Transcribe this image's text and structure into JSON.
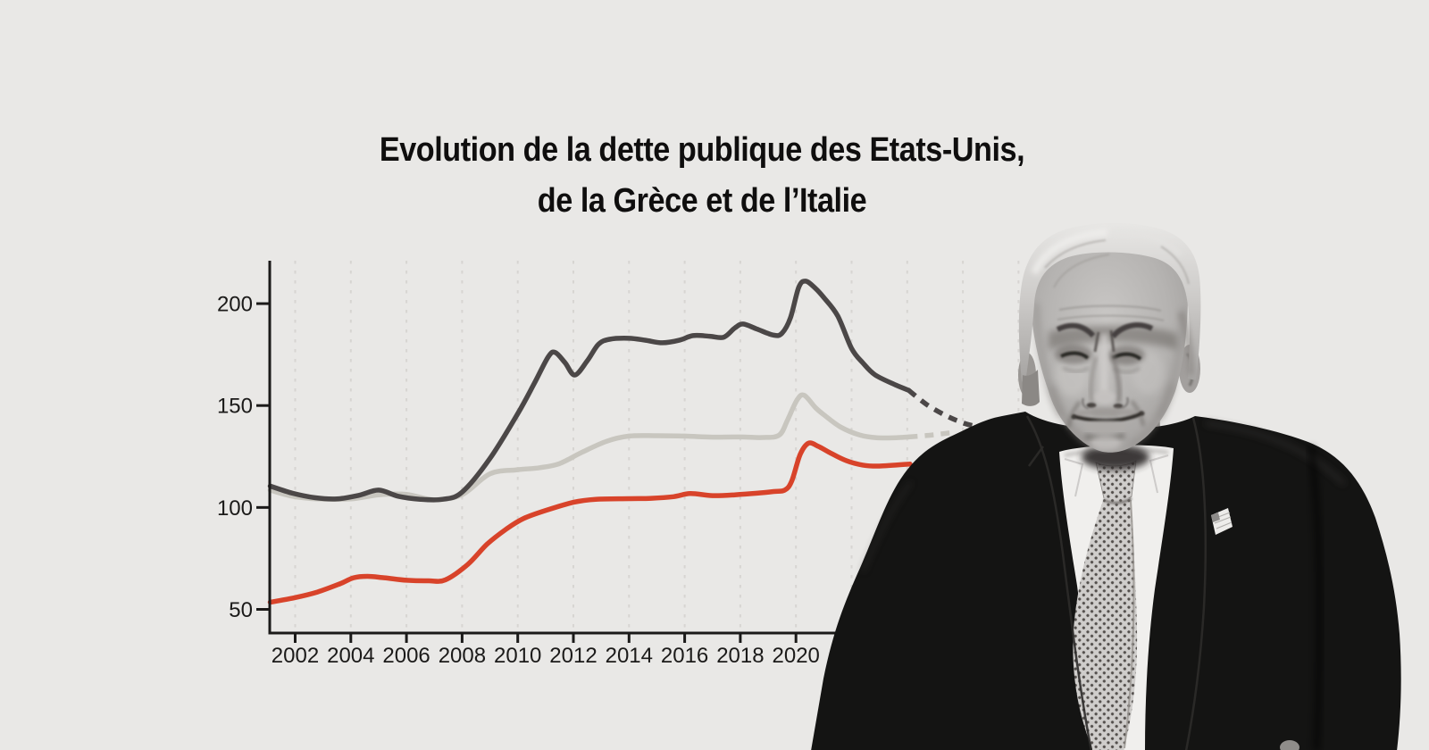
{
  "title": {
    "line1": "Evolution de la dette publique des Etats-Unis,",
    "line2": "de la Grèce et de l’Italie"
  },
  "image": {
    "portrait": "black-and-white cutout photo of Donald Trump in dark suit with dotted tie and US flag pin"
  },
  "colors": {
    "background": "#e9e8e6",
    "axis": "#1b1a19",
    "tick_label": "#1b1a19",
    "gridline": "#d7d5d2",
    "greece_line": "#4b4747",
    "italy_line": "#c8c6bf",
    "usa_line": "#d8432a"
  },
  "chart_data": {
    "type": "line",
    "title": "Evolution de la dette publique des Etats-Unis, de la Grèce et de l’Italie",
    "xlabel": "",
    "ylabel": "",
    "grid": "vertical-dashed",
    "legend": "none",
    "x_axis": {
      "tick_years": [
        2002,
        2004,
        2006,
        2008,
        2010,
        2012,
        2014,
        2016,
        2018,
        2020
      ],
      "gridline_years": [
        2002,
        2004,
        2006,
        2008,
        2010,
        2012,
        2014,
        2016,
        2018,
        2020,
        2022,
        2024,
        2026,
        2028
      ],
      "min": 2001.1,
      "max": 2028.3
    },
    "y_axis": {
      "ticks": [
        50,
        100,
        150,
        200
      ],
      "min": 38,
      "max": 221
    },
    "series": [
      {
        "name": "Italie",
        "color": "#c8c6bf",
        "style": "solid, dashed projection after 2024",
        "points": [
          [
            2001.1,
            108.5
          ],
          [
            2001.9,
            105.5
          ],
          [
            2002.8,
            104.2
          ],
          [
            2004,
            104.2
          ],
          [
            2005,
            106.2
          ],
          [
            2006,
            106.4
          ],
          [
            2007,
            103.8
          ],
          [
            2008,
            106.3
          ],
          [
            2009,
            116.5
          ],
          [
            2010,
            118.5
          ],
          [
            2010.8,
            119.5
          ],
          [
            2011.5,
            121.5
          ],
          [
            2012.3,
            127
          ],
          [
            2013.2,
            132.5
          ],
          [
            2014,
            135
          ],
          [
            2015,
            135.2
          ],
          [
            2016,
            135
          ],
          [
            2017,
            134.5
          ],
          [
            2018,
            134.6
          ],
          [
            2018.8,
            134.3
          ],
          [
            2019.4,
            135.5
          ],
          [
            2019.7,
            143
          ],
          [
            2020.05,
            153
          ],
          [
            2020.3,
            155
          ],
          [
            2020.7,
            149
          ],
          [
            2021,
            145.5
          ],
          [
            2021.6,
            139.5
          ],
          [
            2022.3,
            135.5
          ],
          [
            2022.9,
            134.2
          ],
          [
            2023.6,
            134.2
          ],
          [
            2024.05,
            134.6
          ]
        ],
        "projection": [
          [
            2024.7,
            135.3
          ],
          [
            2025.3,
            136.2
          ],
          [
            2025.7,
            136.9
          ]
        ]
      },
      {
        "name": "Grèce",
        "color": "#4b4747",
        "style": "solid, dashed projection after 2024",
        "points": [
          [
            2001.1,
            110.5
          ],
          [
            2001.9,
            107
          ],
          [
            2002.7,
            104.8
          ],
          [
            2003.5,
            104.2
          ],
          [
            2004.3,
            106
          ],
          [
            2005,
            108.5
          ],
          [
            2005.7,
            105.5
          ],
          [
            2006.5,
            104
          ],
          [
            2007.3,
            104
          ],
          [
            2008,
            107.5
          ],
          [
            2009,
            124
          ],
          [
            2010,
            146
          ],
          [
            2010.6,
            161
          ],
          [
            2011.1,
            174
          ],
          [
            2011.35,
            176
          ],
          [
            2011.7,
            171
          ],
          [
            2012.05,
            165
          ],
          [
            2012.5,
            172
          ],
          [
            2012.9,
            180
          ],
          [
            2013.3,
            182.5
          ],
          [
            2014,
            183
          ],
          [
            2014.6,
            182
          ],
          [
            2015.2,
            180.8
          ],
          [
            2015.8,
            182
          ],
          [
            2016.3,
            184.3
          ],
          [
            2016.9,
            184
          ],
          [
            2017.4,
            183.5
          ],
          [
            2017.8,
            188
          ],
          [
            2018.1,
            190
          ],
          [
            2018.6,
            187.5
          ],
          [
            2019.2,
            184.5
          ],
          [
            2019.5,
            185.5
          ],
          [
            2019.8,
            193
          ],
          [
            2020.1,
            208
          ],
          [
            2020.35,
            211
          ],
          [
            2020.7,
            207.5
          ],
          [
            2021,
            203
          ],
          [
            2021.5,
            194
          ],
          [
            2022,
            178
          ],
          [
            2022.4,
            171
          ],
          [
            2022.85,
            165
          ],
          [
            2023.6,
            160
          ],
          [
            2024.05,
            157.5
          ]
        ],
        "projection": [
          [
            2024.7,
            150.5
          ],
          [
            2025.4,
            145
          ],
          [
            2026,
            141.5
          ],
          [
            2026.4,
            140
          ]
        ]
      },
      {
        "name": "Etats-Unis",
        "color": "#d8432a",
        "style": "solid, end hidden behind photo",
        "points": [
          [
            2001.1,
            53.5
          ],
          [
            2002,
            55.8
          ],
          [
            2002.8,
            58.5
          ],
          [
            2003.6,
            62.5
          ],
          [
            2004.1,
            65.5
          ],
          [
            2004.6,
            66.2
          ],
          [
            2005.2,
            65.5
          ],
          [
            2006,
            64.3
          ],
          [
            2006.8,
            64
          ],
          [
            2007.4,
            64.5
          ],
          [
            2008.2,
            72
          ],
          [
            2008.9,
            82
          ],
          [
            2009.6,
            89.5
          ],
          [
            2010.2,
            94.5
          ],
          [
            2011,
            98.5
          ],
          [
            2012,
            102.5
          ],
          [
            2012.8,
            104
          ],
          [
            2014,
            104.3
          ],
          [
            2014.8,
            104.5
          ],
          [
            2015.6,
            105.3
          ],
          [
            2016.2,
            106.8
          ],
          [
            2017,
            105.8
          ],
          [
            2017.8,
            106.2
          ],
          [
            2018.6,
            107
          ],
          [
            2019.2,
            107.8
          ],
          [
            2019.6,
            108.5
          ],
          [
            2019.85,
            113
          ],
          [
            2020.15,
            126
          ],
          [
            2020.45,
            131.5
          ],
          [
            2020.8,
            130
          ],
          [
            2021.2,
            127
          ],
          [
            2021.8,
            123
          ],
          [
            2022.4,
            120.8
          ],
          [
            2023,
            120.3
          ],
          [
            2024.1,
            121.3
          ]
        ]
      }
    ]
  }
}
